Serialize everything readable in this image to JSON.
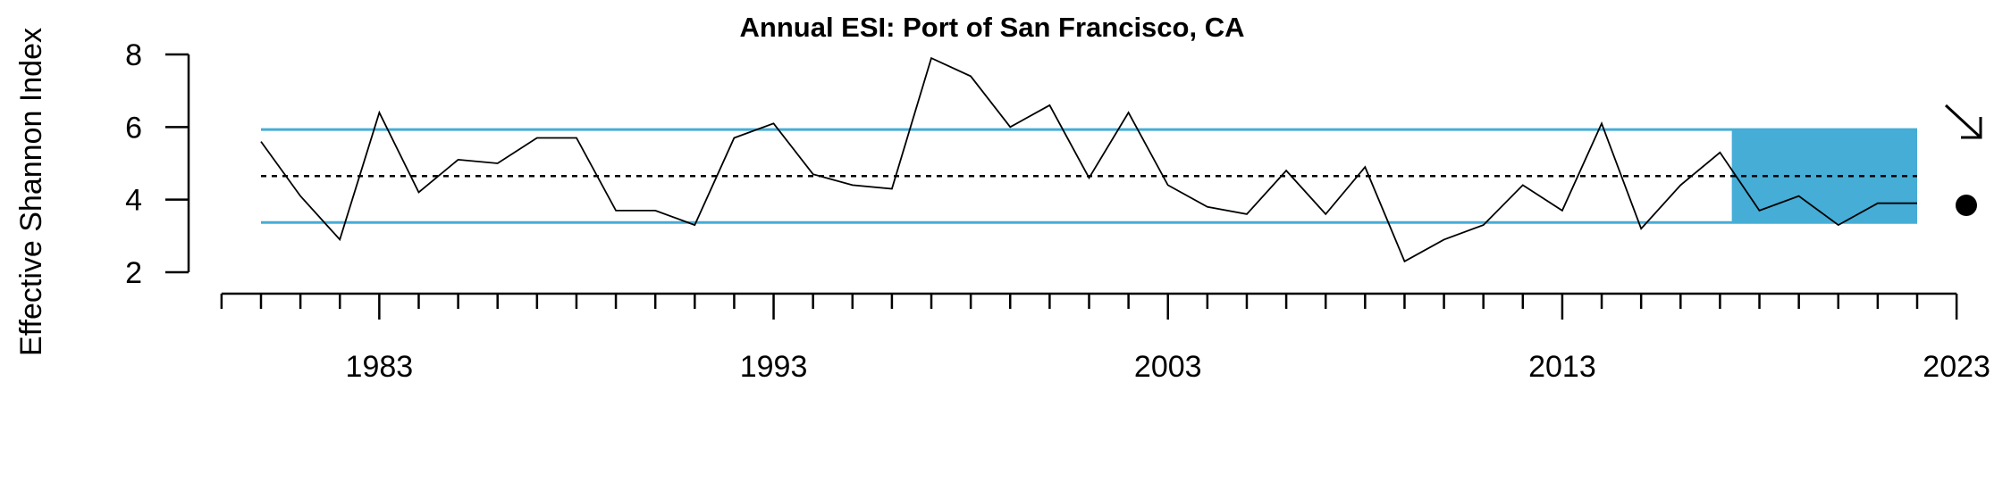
{
  "chart_data": {
    "type": "line",
    "title": "Annual ESI: Port of San Francisco, CA",
    "ylabel": "Effective Shannon Index",
    "xlabel": "",
    "xlim": [
      1980,
      2023
    ],
    "ylim": [
      2,
      8
    ],
    "y_ticks": [
      2,
      4,
      6,
      8
    ],
    "x_major_ticks": [
      1983,
      1993,
      2003,
      2013,
      2023
    ],
    "series": [
      {
        "x": [
          1980,
          1981,
          1982,
          1983,
          1984,
          1985,
          1986,
          1987,
          1988,
          1989,
          1990,
          1991,
          1992,
          1993,
          1994,
          1995,
          1996,
          1997,
          1998,
          1999,
          2000,
          2001,
          2002,
          2003,
          2004,
          2005,
          2006,
          2007,
          2008,
          2009,
          2010,
          2011,
          2012,
          2013,
          2014,
          2015,
          2016,
          2017,
          2018,
          2019,
          2020,
          2021,
          2022
        ],
        "values": [
          5.6,
          4.1,
          2.9,
          6.4,
          4.2,
          5.1,
          5.0,
          5.7,
          5.7,
          3.7,
          3.7,
          3.3,
          5.7,
          6.1,
          4.7,
          4.4,
          4.3,
          7.9,
          7.4,
          6.0,
          6.6,
          4.6,
          6.4,
          4.4,
          3.8,
          3.6,
          4.8,
          3.6,
          4.9,
          2.3,
          2.9,
          3.3,
          4.4,
          3.7,
          6.1,
          3.2,
          4.4,
          5.3,
          3.7,
          4.1,
          3.3,
          3.9,
          3.9
        ],
        "color": "#000000"
      }
    ],
    "mean": 4.65,
    "upper_band": 5.93,
    "lower_band": 3.37,
    "band_color": "#45ADD6",
    "recent_window": [
      2017,
      2021
    ],
    "trend_indicator": "down-arrow",
    "status_indicator": "filled-circle"
  }
}
